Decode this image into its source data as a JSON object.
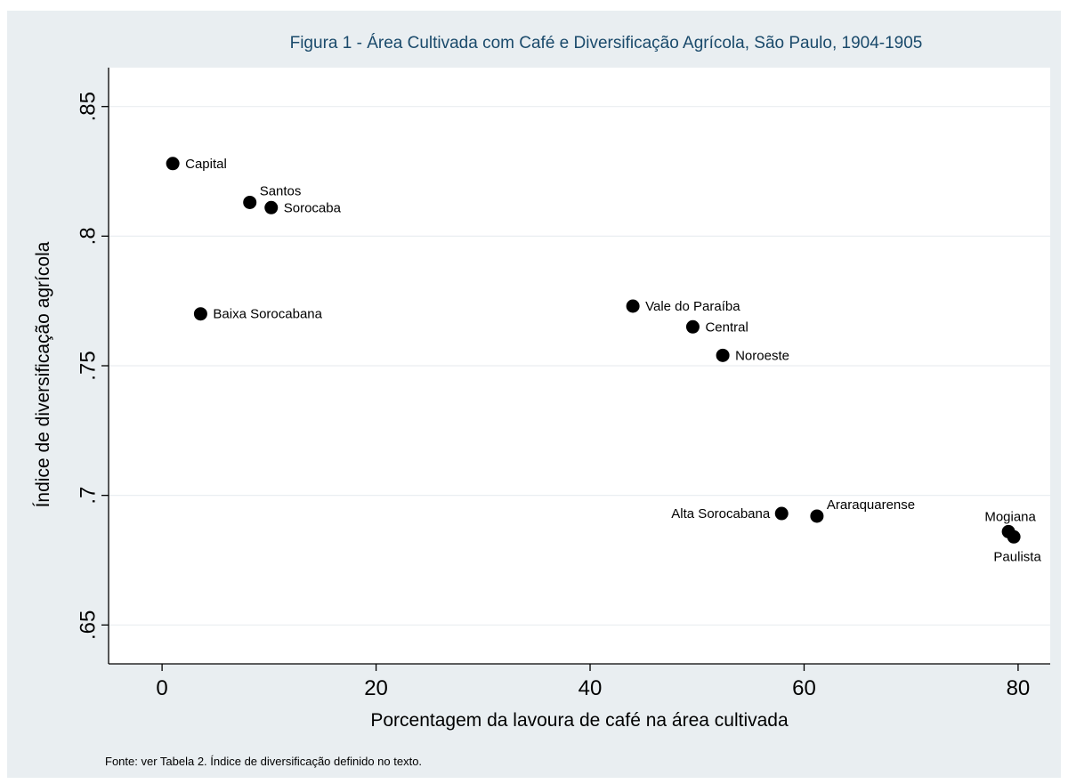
{
  "note": "Fonte: ver Tabela 2. Índice de diversificação definido no texto.",
  "colors": {
    "frame_bg": "#e9eef1",
    "plot_bg": "#ffffff",
    "grid": "#e9eef1",
    "marker": "#000000",
    "title": "#1a4a6b"
  },
  "chart_data": {
    "type": "scatter",
    "title": "Figura 1 - Área Cultivada com Café e Diversificação Agrícola, São Paulo, 1904-1905",
    "xlabel": "Porcentagem da lavoura de café na área cultivada",
    "ylabel": "Índice de diversificação agrícola",
    "xlim": [
      -5,
      83
    ],
    "ylim": [
      0.635,
      0.865
    ],
    "xticks": [
      0,
      20,
      40,
      60,
      80
    ],
    "xtick_labels": [
      "0",
      "20",
      "40",
      "60",
      "80"
    ],
    "yticks": [
      0.65,
      0.7,
      0.75,
      0.8,
      0.85
    ],
    "ytick_labels": [
      ".65",
      ".7",
      ".75",
      ".8",
      ".85"
    ],
    "grid": "horizontal",
    "points": [
      {
        "label": "Capital",
        "x": 1.0,
        "y": 0.828,
        "label_pos": "right"
      },
      {
        "label": "Santos",
        "x": 8.2,
        "y": 0.813,
        "label_pos": "above-right"
      },
      {
        "label": "Sorocaba",
        "x": 10.2,
        "y": 0.811,
        "label_pos": "right"
      },
      {
        "label": "Baixa Sorocabana",
        "x": 3.6,
        "y": 0.77,
        "label_pos": "right"
      },
      {
        "label": "Vale do Paraíba",
        "x": 44.0,
        "y": 0.773,
        "label_pos": "right"
      },
      {
        "label": "Central",
        "x": 49.6,
        "y": 0.765,
        "label_pos": "right"
      },
      {
        "label": "Noroeste",
        "x": 52.4,
        "y": 0.754,
        "label_pos": "right"
      },
      {
        "label": "Alta Sorocabana",
        "x": 57.9,
        "y": 0.693,
        "label_pos": "left"
      },
      {
        "label": "Araraquarense",
        "x": 61.2,
        "y": 0.692,
        "label_pos": "above-right"
      },
      {
        "label": "Mogiana",
        "x": 79.1,
        "y": 0.686,
        "label_pos": "above"
      },
      {
        "label": "Paulista",
        "x": 79.6,
        "y": 0.684,
        "label_pos": "below"
      }
    ]
  }
}
